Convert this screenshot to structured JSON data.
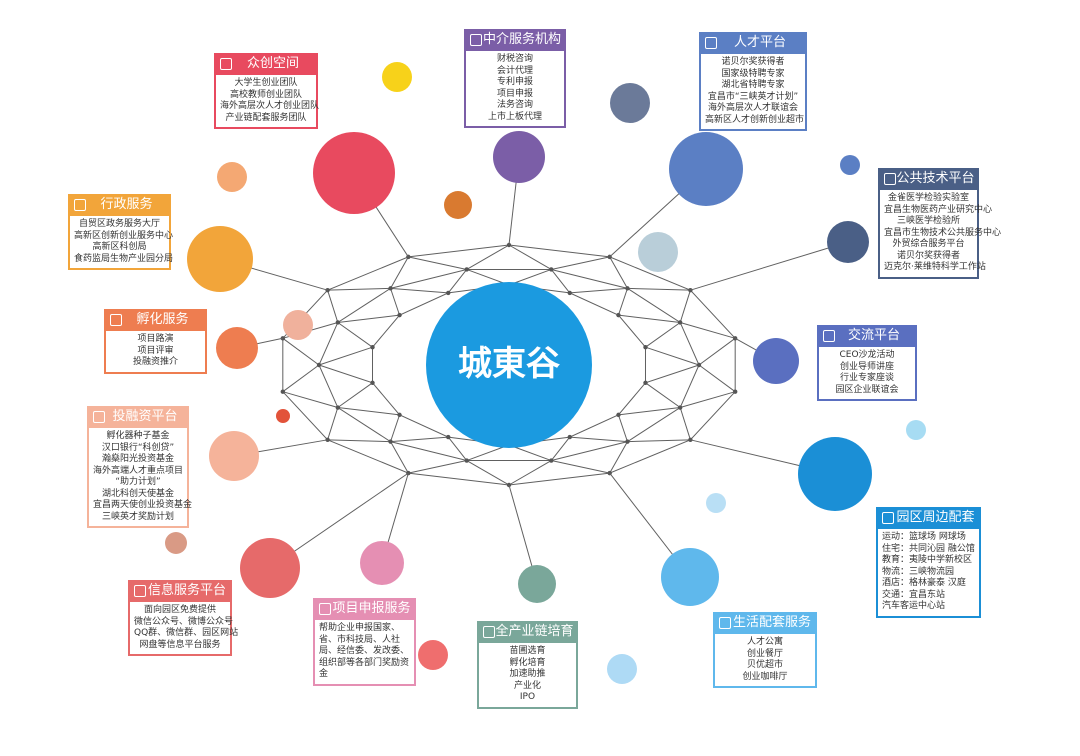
{
  "center": {
    "logo": "城東谷"
  },
  "colors": {
    "center": "#1b9ae0",
    "web": "#606060"
  },
  "boxes": [
    {
      "key": "zhongchuang",
      "title": "众创空间",
      "icon": "house-icon",
      "color": "#e84a5f",
      "items": [
        "大学生创业团队",
        "高校教师创业团队",
        "海外高层次人才创业团队",
        "产业链配套服务团队"
      ]
    },
    {
      "key": "zhongjie",
      "title": "中介服务机构",
      "icon": "presentation-icon",
      "color": "#7b5ea7",
      "items": [
        "财税咨询",
        "会计代理",
        "专利申报",
        "项目申报",
        "法务咨询",
        "上市上板代理"
      ]
    },
    {
      "key": "rencai",
      "title": "人才平台",
      "icon": "people-icon",
      "color": "#5b7fc4",
      "items": [
        "诺贝尔奖获得者",
        "国家级特聘专家",
        "湖北省特聘专家",
        "宜昌市“三峡英才计划”",
        "海外高层次人才联谊会",
        "高新区人才创新创业超市"
      ]
    },
    {
      "key": "gonggong",
      "title": "公共技术平台",
      "icon": "lab-icon",
      "color": "#4a5f86",
      "items": [
        "金雀医学检验实验室",
        "宜昌生物医药产业研究中心",
        "三峡医学检验所",
        "宜昌市生物技术公共服务中心",
        "外贸综合服务平台",
        "诺贝尔奖获得者",
        "迈克尔·莱维特科学工作站"
      ]
    },
    {
      "key": "jiaoliu",
      "title": "交流平台",
      "icon": "chat-icon",
      "color": "#5a6fc0",
      "items": [
        "CEO沙龙活动",
        "创业导师讲座",
        "行业专家座谈",
        "园区企业联谊会"
      ]
    },
    {
      "key": "yuanqu",
      "title": "园区周边配套",
      "icon": "map-icon",
      "color": "#1b8fd6",
      "items": [
        "运动：篮球场 网球场",
        "住宅：共同沁园 融公馆",
        "教育：夷陵中学新校区",
        "物流：三峡物流园",
        "酒店：格林豪泰 汉庭",
        "交通：宜昌东站",
        "汽车客运中心站"
      ]
    },
    {
      "key": "shenghuo",
      "title": "生活配套服务",
      "icon": "cart-icon",
      "color": "#5fb8ec",
      "items": [
        "人才公寓",
        "创业餐厅",
        "贝优超市",
        "创业咖啡厅"
      ]
    },
    {
      "key": "chanye",
      "title": "全产业链培育",
      "icon": "chain-icon",
      "color": "#7aa79a",
      "items": [
        "苗圃选育",
        "孵化培育",
        "加速助推",
        "产业化",
        "IPO"
      ]
    },
    {
      "key": "xiangmu",
      "title": "项目申报服务",
      "icon": "mail-icon",
      "color": "#e58fb3",
      "items": [
        "帮助企业申报国家、",
        "省、市科技局、人社",
        "局、经信委、发改委、",
        "组织部等各部门奖励资",
        "金"
      ]
    },
    {
      "key": "xinxi",
      "title": "信息服务平台",
      "icon": "doc-icon",
      "color": "#e66a6a",
      "items": [
        "面向园区免费提供",
        "微信公众号、微博公众号",
        "QQ群、微信群、园区网站",
        "网盘等信息平台服务"
      ]
    },
    {
      "key": "tourongzi",
      "title": "投融资平台",
      "icon": "money-bag-icon",
      "color": "#f5b39a",
      "items": [
        "孵化器种子基金",
        "汉口银行“科创贷”",
        "瀚燊阳光投资基金",
        "海外高端人才重点项目",
        "“助力计划”",
        "湖北科创天使基金",
        "宜昌两天使创业投资基金",
        "三峡英才奖励计划"
      ]
    },
    {
      "key": "fuhua",
      "title": "孵化服务",
      "icon": "sprout-icon",
      "color": "#ee7d50",
      "items": [
        "项目路演",
        "项目评审",
        "投融资推介"
      ]
    },
    {
      "key": "xingzheng",
      "title": "行政服务",
      "icon": "building-icon",
      "color": "#f2a53a",
      "items": [
        "自贸区政务服务大厅",
        "高新区创新创业服务中心",
        "高新区科创局",
        "食药监局生物产业园分局"
      ]
    }
  ]
}
